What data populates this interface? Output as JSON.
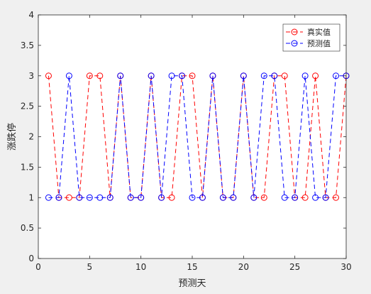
{
  "chart_data": {
    "type": "line",
    "xlabel": "预测天",
    "ylabel": "涨跌停",
    "xlim": [
      0,
      30
    ],
    "ylim": [
      0,
      4
    ],
    "xticks": [
      0,
      5,
      10,
      15,
      20,
      25,
      30
    ],
    "yticks": [
      0,
      0.5,
      1,
      1.5,
      2,
      2.5,
      3,
      3.5,
      4
    ],
    "xtick_labels": [
      "0",
      "5",
      "10",
      "15",
      "20",
      "25",
      "30"
    ],
    "ytick_labels": [
      "0",
      "0.5",
      "1",
      "1.5",
      "2",
      "2.5",
      "3",
      "3.5",
      "4"
    ],
    "grid": false,
    "legend_position": "top-right",
    "x": [
      1,
      2,
      3,
      4,
      5,
      6,
      7,
      8,
      9,
      10,
      11,
      12,
      13,
      14,
      15,
      16,
      17,
      18,
      19,
      20,
      21,
      22,
      23,
      24,
      25,
      26,
      27,
      28,
      29,
      30
    ],
    "series": [
      {
        "name": "真实值",
        "color": "#ff0000",
        "values": [
          3,
          1,
          1,
          1,
          3,
          3,
          1,
          3,
          1,
          1,
          3,
          1,
          1,
          3,
          3,
          1,
          3,
          1,
          1,
          3,
          1,
          1,
          3,
          3,
          1,
          1,
          3,
          1,
          1,
          3
        ]
      },
      {
        "name": "预测值",
        "color": "#0000ff",
        "values": [
          1,
          1,
          3,
          1,
          1,
          1,
          1,
          3,
          1,
          1,
          3,
          1,
          3,
          3,
          1,
          1,
          3,
          1,
          1,
          3,
          1,
          3,
          3,
          1,
          1,
          3,
          1,
          1,
          3,
          3
        ]
      }
    ]
  }
}
